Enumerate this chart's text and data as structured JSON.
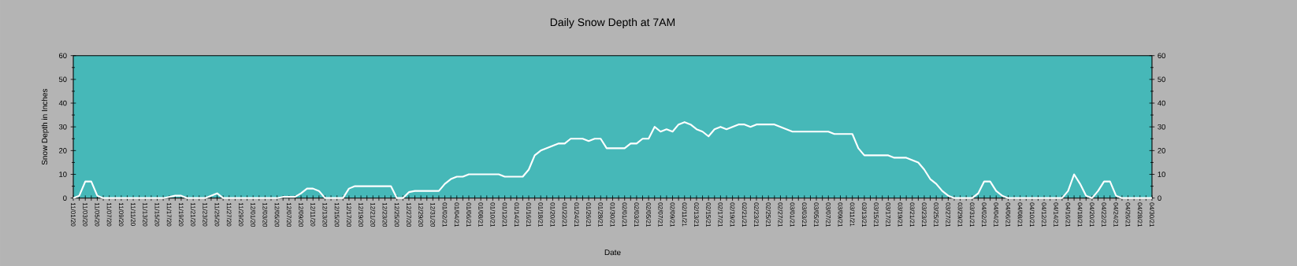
{
  "chart_data": {
    "type": "line",
    "title": "Daily Snow Depth at 7AM",
    "xlabel": "Date",
    "ylabel": "Snow Depth in Inches",
    "categories": [
      "11/01/20",
      null,
      "11/03/20",
      null,
      "11/05/20",
      null,
      "11/07/20",
      null,
      "11/09/20",
      null,
      "11/11/20",
      null,
      "11/13/20",
      null,
      "11/15/20",
      null,
      "11/17/20",
      null,
      "11/19/20",
      null,
      "11/21/20",
      null,
      "11/23/20",
      null,
      "11/25/20",
      null,
      "11/27/20",
      null,
      "11/29/20",
      null,
      "12/01/20",
      null,
      "12/03/20",
      null,
      "12/05/20",
      null,
      "12/07/20",
      null,
      "12/09/20",
      null,
      "12/11/20",
      null,
      "12/13/20",
      null,
      "12/15/20",
      null,
      "12/17/20",
      null,
      "12/19/20",
      null,
      "12/21/20",
      null,
      "12/23/20",
      null,
      "12/25/20",
      null,
      "12/27/20",
      null,
      "12/29/20",
      null,
      "12/31/20",
      null,
      "01/02/21",
      null,
      "01/04/21",
      null,
      "01/06/21",
      null,
      "01/08/21",
      null,
      "01/10/21",
      null,
      "01/12/21",
      null,
      "01/14/21",
      null,
      "01/16/21",
      null,
      "01/18/21",
      null,
      "01/20/21",
      null,
      "01/22/21",
      null,
      "01/24/21",
      null,
      "01/26/21",
      null,
      "01/28/21",
      null,
      "01/30/21",
      null,
      "02/01/21",
      null,
      "02/03/21",
      null,
      "02/05/21",
      null,
      "02/07/21",
      null,
      "02/09/21",
      null,
      "02/11/21",
      null,
      "02/13/21",
      null,
      "02/15/21",
      null,
      "02/17/21",
      null,
      "02/19/21",
      null,
      "02/21/21",
      null,
      "02/23/21",
      null,
      "02/25/21",
      null,
      "02/27/21",
      null,
      "03/01/21",
      null,
      "03/03/21",
      null,
      "03/05/21",
      null,
      "03/07/21",
      null,
      "03/09/21",
      null,
      "03/11/21",
      null,
      "03/13/21",
      null,
      "03/15/21",
      null,
      "03/17/21",
      null,
      "03/19/21",
      null,
      "03/21/21",
      null,
      "03/23/21",
      null,
      "03/25/21",
      null,
      "03/27/21",
      null,
      "03/29/21",
      null,
      "03/31/21",
      null,
      "04/02/21",
      null,
      "04/04/21",
      null,
      "04/06/21",
      null,
      "04/08/21",
      null,
      "04/10/21",
      null,
      "04/12/21",
      null,
      "04/14/21",
      null,
      "04/16/21",
      null,
      "04/18/21",
      null,
      "04/20/21",
      null,
      "04/22/21",
      null,
      "04/24/21",
      null,
      "04/26/21",
      null,
      "04/28/21",
      null,
      "04/30/21"
    ],
    "values": [
      0,
      1,
      7,
      7,
      1,
      0,
      0,
      0,
      0,
      0,
      0,
      0,
      0,
      0,
      0,
      0,
      0.5,
      1,
      1,
      0,
      0,
      0,
      0,
      1,
      2,
      0,
      0,
      0,
      0,
      0,
      0,
      0,
      0,
      0,
      0,
      0.5,
      0.5,
      0.5,
      2,
      4,
      4,
      3,
      0,
      0,
      0,
      0,
      4,
      5,
      5,
      5,
      5,
      5,
      5,
      5,
      0,
      0,
      2.5,
      3,
      3,
      3,
      3,
      3,
      6,
      8,
      9,
      9,
      10,
      10,
      10,
      10,
      10,
      10,
      9,
      9,
      9,
      9,
      12,
      18,
      20,
      21,
      22,
      23,
      23,
      25,
      25,
      25,
      24,
      25,
      25,
      21,
      21,
      21,
      21,
      23,
      23,
      25,
      25,
      30,
      28,
      29,
      28,
      31,
      32,
      31,
      29,
      28,
      26,
      29,
      30,
      29,
      30,
      31,
      31,
      30,
      31,
      31,
      31,
      31,
      30,
      29,
      28,
      28,
      28,
      28,
      28,
      28,
      28,
      27,
      27,
      27,
      27,
      21,
      18,
      18,
      18,
      18,
      18,
      17,
      17,
      17,
      16,
      15,
      12,
      8,
      6,
      3,
      1,
      0,
      0,
      0,
      0,
      2,
      7,
      7,
      3,
      1,
      0,
      0,
      0,
      0,
      0,
      0,
      0,
      0,
      0,
      0,
      3,
      10,
      6,
      1,
      0,
      3,
      7,
      7,
      1,
      0,
      0,
      0,
      0,
      0,
      0
    ],
    "color": "#ffffff",
    "ylim": [
      0,
      60
    ],
    "yticks": [
      0,
      10,
      20,
      30,
      40,
      50,
      60
    ],
    "y2lim": [
      0,
      60
    ],
    "y2ticks": [
      0,
      10,
      20,
      30,
      40,
      50,
      60
    ]
  }
}
